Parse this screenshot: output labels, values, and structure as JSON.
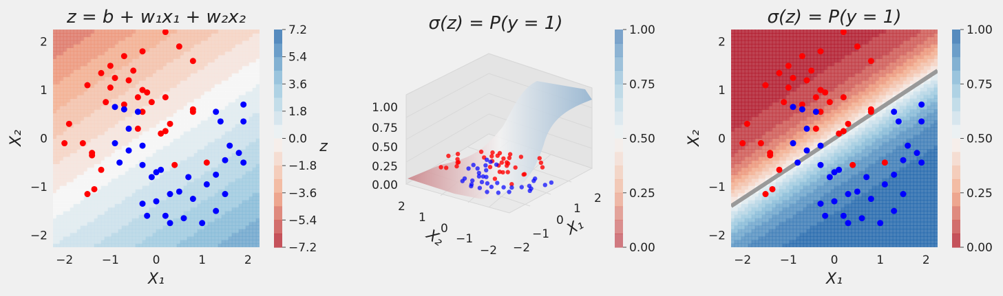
{
  "colors": {
    "background": "#f0f0f0",
    "red_points": "#ff0000",
    "blue_points": "#0000ff",
    "boundary_line": "#999999"
  },
  "charts": [
    {
      "type": "contour",
      "title": "z = b + w₁x₁ + w₂x₂",
      "xlabel": "X₁",
      "ylabel": "X₂",
      "xlim": [
        -2.25,
        2.25
      ],
      "ylim": [
        -2.25,
        2.25
      ],
      "xticks": [
        "−2",
        "−1",
        "0",
        "1",
        "2"
      ],
      "yticks": [
        "−2",
        "−1",
        "0",
        "1",
        "2"
      ],
      "colorbar": {
        "label": "z",
        "range": [
          -7.2,
          7.2
        ],
        "ticks": [
          "7.2",
          "5.4",
          "3.6",
          "1.8",
          "0.0",
          "−1.8",
          "−3.6",
          "−5.4",
          "−7.2"
        ]
      }
    },
    {
      "type": "surface3d",
      "title": "σ(z) = P(y = 1)",
      "xlabel": "X₁",
      "ylabel": "X₂",
      "xticks": [
        "−2",
        "−1",
        "0",
        "1",
        "2"
      ],
      "yticks": [
        "−2",
        "−1",
        "0",
        "1",
        "2"
      ],
      "zticks": [
        "0.00",
        "0.25",
        "0.50",
        "0.75",
        "1.00"
      ],
      "colorbar": {
        "range": [
          0,
          1
        ],
        "ticks": [
          "1.00",
          "0.75",
          "0.50",
          "0.25",
          "0.00"
        ]
      }
    },
    {
      "type": "contour",
      "title": "σ(z) = P(y = 1)",
      "xlabel": "X₁",
      "ylabel": "X₂",
      "xlim": [
        -2.25,
        2.25
      ],
      "ylim": [
        -2.25,
        2.25
      ],
      "xticks": [
        "−2",
        "−1",
        "0",
        "1",
        "2"
      ],
      "yticks": [
        "−2",
        "−1",
        "0",
        "1",
        "2"
      ],
      "decision_boundary": [
        [
          -2.25,
          -1.4
        ],
        [
          2.25,
          1.4
        ]
      ],
      "colorbar": {
        "range": [
          0,
          1
        ],
        "ticks": [
          "1.00",
          "0.75",
          "0.50",
          "0.25",
          "0.00"
        ]
      }
    }
  ],
  "chart_data": {
    "type": "scatter",
    "series": [
      {
        "class": "red",
        "points": [
          [
            0.2,
            2.2
          ],
          [
            0.5,
            1.9
          ],
          [
            -0.3,
            1.8
          ],
          [
            -0.7,
            1.7
          ],
          [
            0.8,
            1.6
          ],
          [
            -1.0,
            1.5
          ],
          [
            -0.5,
            1.4
          ],
          [
            -1.2,
            1.35
          ],
          [
            -0.9,
            1.25
          ],
          [
            -0.6,
            1.2
          ],
          [
            -1.5,
            1.1
          ],
          [
            -1.0,
            1.05
          ],
          [
            -0.3,
            1.0
          ],
          [
            -0.2,
            0.95
          ],
          [
            -0.4,
            0.85
          ],
          [
            0.2,
            0.85
          ],
          [
            -1.1,
            0.75
          ],
          [
            -0.7,
            0.7
          ],
          [
            -0.1,
            0.75
          ],
          [
            0.8,
            0.6
          ],
          [
            0.8,
            0.55
          ],
          [
            -0.3,
            0.55
          ],
          [
            -1.9,
            0.3
          ],
          [
            0.3,
            0.3
          ],
          [
            -0.4,
            0.2
          ],
          [
            0.1,
            0.1
          ],
          [
            0.2,
            0.15
          ],
          [
            -1.6,
            -0.1
          ],
          [
            -2.0,
            -0.1
          ],
          [
            -1.4,
            -0.3
          ],
          [
            -1.4,
            -0.35
          ],
          [
            0.4,
            -0.55
          ],
          [
            1.1,
            -0.5
          ],
          [
            -1.2,
            -0.65
          ],
          [
            -1.35,
            -1.05
          ],
          [
            -1.5,
            -1.15
          ]
        ]
      },
      {
        "class": "blue",
        "points": [
          [
            1.9,
            0.7
          ],
          [
            1.3,
            0.55
          ],
          [
            -0.9,
            0.65
          ],
          [
            -0.7,
            0.6
          ],
          [
            -0.4,
            0.55
          ],
          [
            1.4,
            0.35
          ],
          [
            1.9,
            0.35
          ],
          [
            -0.6,
            0.2
          ],
          [
            -0.9,
            -0.1
          ],
          [
            -0.6,
            -0.25
          ],
          [
            1.6,
            -0.15
          ],
          [
            -0.3,
            -0.15
          ],
          [
            1.8,
            -0.3
          ],
          [
            -0.8,
            -0.5
          ],
          [
            -0.3,
            -0.55
          ],
          [
            1.5,
            -0.45
          ],
          [
            1.9,
            -0.5
          ],
          [
            0.1,
            -0.65
          ],
          [
            0.0,
            -0.7
          ],
          [
            1.3,
            -0.75
          ],
          [
            -0.1,
            -0.8
          ],
          [
            0.7,
            -0.8
          ],
          [
            1.1,
            -0.95
          ],
          [
            0.5,
            -1.1
          ],
          [
            0.3,
            -1.15
          ],
          [
            0.8,
            -1.25
          ],
          [
            1.5,
            -1.15
          ],
          [
            0.0,
            -1.3
          ],
          [
            -0.3,
            -1.35
          ],
          [
            1.3,
            -1.5
          ],
          [
            0.2,
            -1.6
          ],
          [
            -0.2,
            -1.6
          ],
          [
            0.6,
            -1.65
          ],
          [
            0.3,
            -1.75
          ],
          [
            1.0,
            -1.75
          ]
        ]
      }
    ]
  }
}
